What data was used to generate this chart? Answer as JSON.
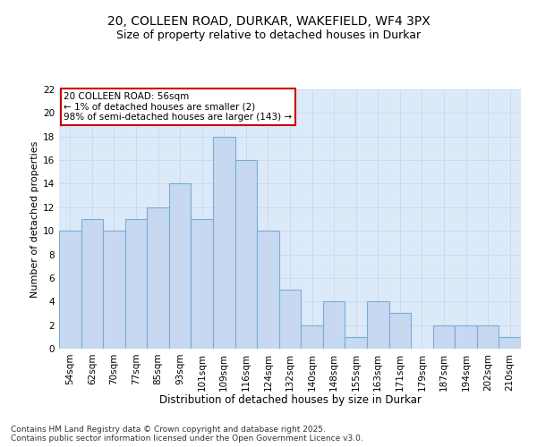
{
  "title_line1": "20, COLLEEN ROAD, DURKAR, WAKEFIELD, WF4 3PX",
  "title_line2": "Size of property relative to detached houses in Durkar",
  "xlabel": "Distribution of detached houses by size in Durkar",
  "ylabel": "Number of detached properties",
  "categories": [
    "54sqm",
    "62sqm",
    "70sqm",
    "77sqm",
    "85sqm",
    "93sqm",
    "101sqm",
    "109sqm",
    "116sqm",
    "124sqm",
    "132sqm",
    "140sqm",
    "148sqm",
    "155sqm",
    "163sqm",
    "171sqm",
    "179sqm",
    "187sqm",
    "194sqm",
    "202sqm",
    "210sqm"
  ],
  "values": [
    10,
    11,
    10,
    11,
    12,
    14,
    11,
    18,
    16,
    10,
    5,
    2,
    4,
    1,
    4,
    3,
    0,
    2,
    2,
    2,
    1
  ],
  "bar_color": "#c6d9f1",
  "bar_edge_color": "#7aadd4",
  "annotation_text": "20 COLLEEN ROAD: 56sqm\n← 1% of detached houses are smaller (2)\n98% of semi-detached houses are larger (143) →",
  "annotation_box_color": "#ffffff",
  "annotation_box_edge_color": "#cc0000",
  "ylim": [
    0,
    22
  ],
  "yticks": [
    0,
    2,
    4,
    6,
    8,
    10,
    12,
    14,
    16,
    18,
    20,
    22
  ],
  "grid_color": "#c8d8ee",
  "background_color": "#dce9f8",
  "footer_line1": "Contains HM Land Registry data © Crown copyright and database right 2025.",
  "footer_line2": "Contains public sector information licensed under the Open Government Licence v3.0.",
  "title_fontsize": 10,
  "subtitle_fontsize": 9,
  "xlabel_fontsize": 8.5,
  "ylabel_fontsize": 8,
  "tick_fontsize": 7.5,
  "annotation_fontsize": 7.5,
  "footer_fontsize": 6.5
}
